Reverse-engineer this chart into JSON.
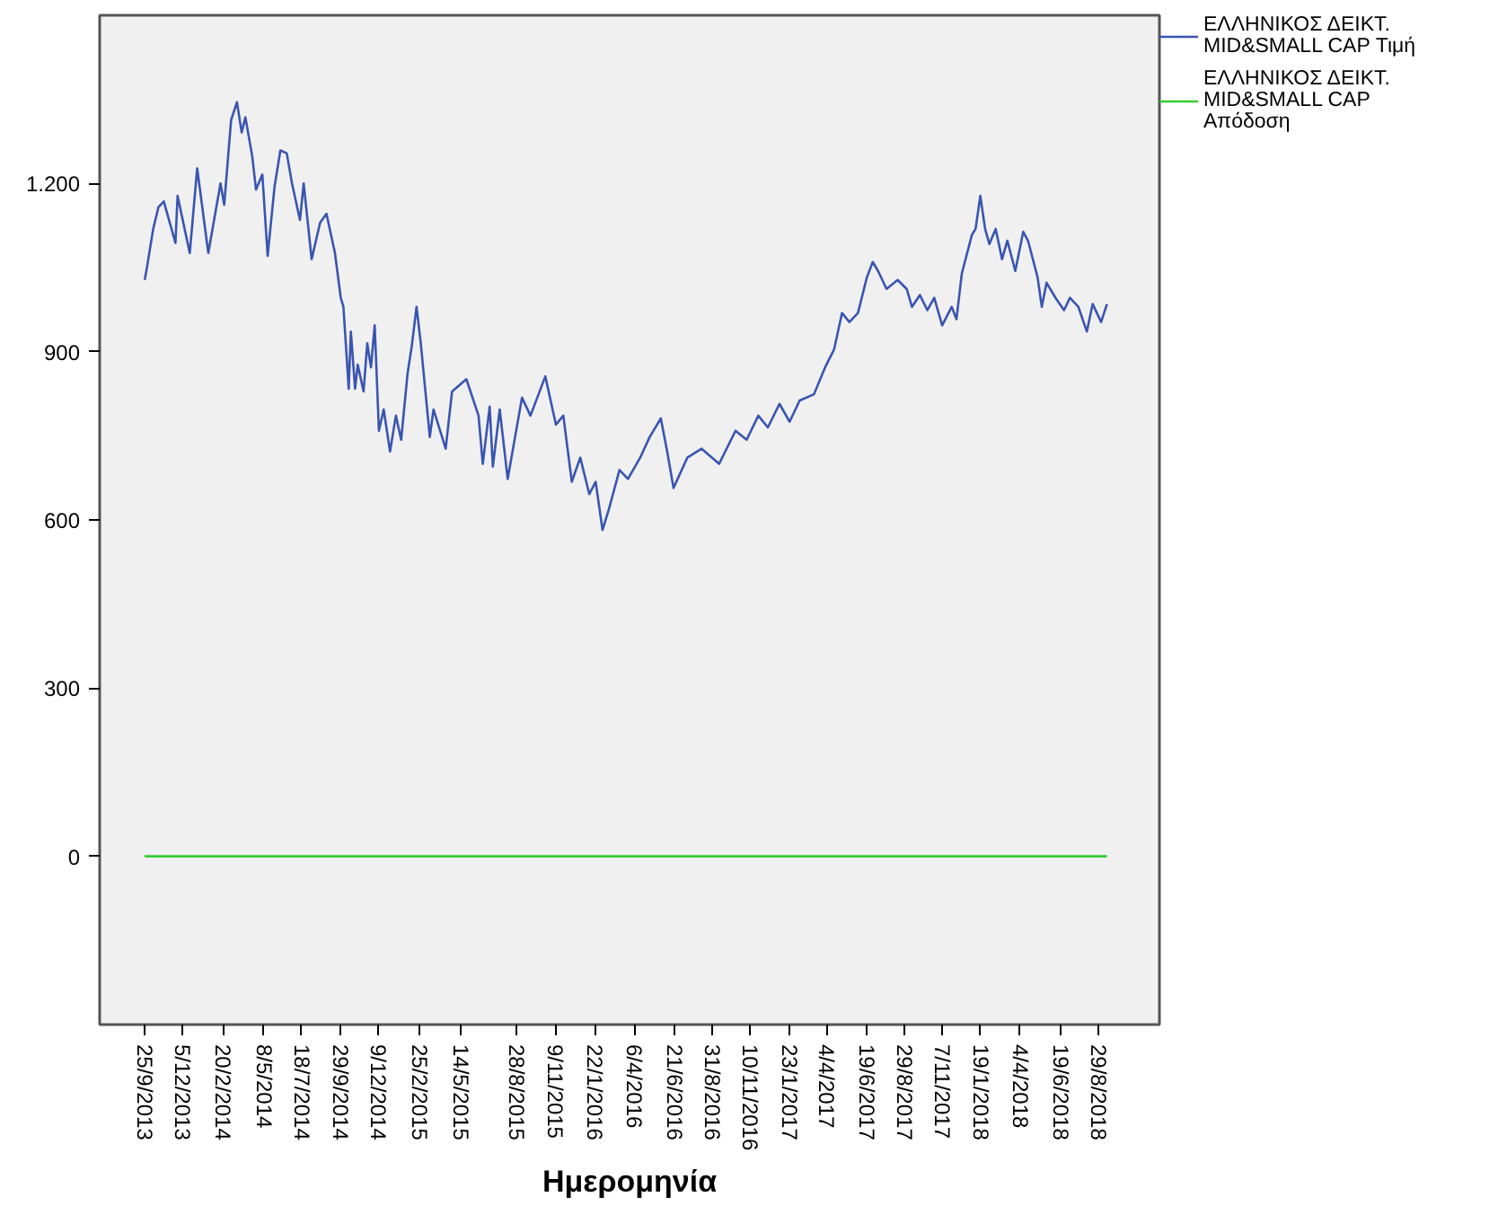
{
  "chart_data": {
    "type": "line",
    "xlabel": "Ημερομηνία",
    "xlim": [
      "2013-07-02",
      "2018-12-23"
    ],
    "ylim": [
      -300,
      1500
    ],
    "xticks": [
      {
        "value": "2013-09-25",
        "label": "25/9/2013"
      },
      {
        "value": "2013-12-05",
        "label": "5/12/2013"
      },
      {
        "value": "2014-02-20",
        "label": "20/2/2014"
      },
      {
        "value": "2014-05-08",
        "label": "8/5/2014"
      },
      {
        "value": "2014-07-18",
        "label": "18/7/2014"
      },
      {
        "value": "2014-09-29",
        "label": "29/9/2014"
      },
      {
        "value": "2014-12-09",
        "label": "9/12/2014"
      },
      {
        "value": "2015-02-25",
        "label": "25/2/2015"
      },
      {
        "value": "2015-05-14",
        "label": "14/5/2015"
      },
      {
        "value": "2015-08-28",
        "label": "28/8/2015"
      },
      {
        "value": "2015-11-09",
        "label": "9/11/2015"
      },
      {
        "value": "2016-01-22",
        "label": "22/1/2016"
      },
      {
        "value": "2016-04-06",
        "label": "6/4/2016"
      },
      {
        "value": "2016-06-21",
        "label": "21/6/2016"
      },
      {
        "value": "2016-08-31",
        "label": "31/8/2016"
      },
      {
        "value": "2016-11-10",
        "label": "10/11/2016"
      },
      {
        "value": "2017-01-23",
        "label": "23/1/2017"
      },
      {
        "value": "2017-04-04",
        "label": "4/4/2017"
      },
      {
        "value": "2017-06-19",
        "label": "19/6/2017"
      },
      {
        "value": "2017-08-29",
        "label": "29/8/2017"
      },
      {
        "value": "2017-11-07",
        "label": "7/11/2017"
      },
      {
        "value": "2018-01-19",
        "label": "19/1/2018"
      },
      {
        "value": "2018-04-04",
        "label": "4/4/2018"
      },
      {
        "value": "2018-06-19",
        "label": "19/6/2018"
      },
      {
        "value": "2018-08-29",
        "label": "29/8/2018"
      }
    ],
    "yticks": [
      0,
      300,
      600,
      900,
      {
        "value": 1200,
        "label": "1.200"
      }
    ],
    "grid": false,
    "legend": "top right",
    "marker": "none",
    "line_style": "solid",
    "series": [
      {
        "name": "ΕΛΛΗΝΙΚΟΣ ΔΕΙΚΤ. MID&SMALL CAP Τιμή",
        "color": "#3a55b0",
        "x": [
          "2013-09-25",
          "2013-09-29",
          "2013-10-11",
          "2013-10-21",
          "2013-10-31",
          "2013-11-22",
          "2013-11-26",
          "2013-12-19",
          "2014-01-02",
          "2014-01-23",
          "2014-02-15",
          "2014-02-22",
          "2014-03-07",
          "2014-03-18",
          "2014-03-27",
          "2014-04-03",
          "2014-04-16",
          "2014-04-23",
          "2014-05-05",
          "2014-05-15",
          "2014-05-28",
          "2014-06-08",
          "2014-06-20",
          "2014-06-30",
          "2014-07-15",
          "2014-07-22",
          "2014-08-06",
          "2014-08-22",
          "2014-09-03",
          "2014-09-19",
          "2014-09-30",
          "2014-10-05",
          "2014-10-15",
          "2014-10-19",
          "2014-10-27",
          "2014-11-01",
          "2014-11-12",
          "2014-11-19",
          "2014-11-26",
          "2014-12-03",
          "2014-12-11",
          "2014-12-20",
          "2015-01-01",
          "2015-01-12",
          "2015-01-22",
          "2015-02-03",
          "2015-02-11",
          "2015-02-20",
          "2015-02-28",
          "2015-03-17",
          "2015-03-24",
          "2015-04-16",
          "2015-04-28",
          "2015-05-25",
          "2015-06-17",
          "2015-06-25",
          "2015-07-08",
          "2015-07-14",
          "2015-07-27",
          "2015-08-11",
          "2015-09-07",
          "2015-09-23",
          "2015-10-21",
          "2015-11-10",
          "2015-11-24",
          "2015-12-10",
          "2015-12-26",
          "2016-01-12",
          "2016-01-24",
          "2016-02-06",
          "2016-02-18",
          "2016-03-09",
          "2016-03-25",
          "2016-04-17",
          "2016-05-05",
          "2016-05-26",
          "2016-06-07",
          "2016-06-19",
          "2016-07-15",
          "2016-08-11",
          "2016-09-13",
          "2016-10-14",
          "2016-11-04",
          "2016-11-26",
          "2016-12-14",
          "2017-01-05",
          "2017-01-24",
          "2017-02-12",
          "2017-03-11",
          "2017-04-01",
          "2017-04-18",
          "2017-05-03",
          "2017-05-17",
          "2017-06-02",
          "2017-06-19",
          "2017-06-30",
          "2017-07-10",
          "2017-07-26",
          "2017-08-16",
          "2017-09-02",
          "2017-09-12",
          "2017-09-27",
          "2017-10-11",
          "2017-10-24",
          "2017-11-08",
          "2017-11-26",
          "2017-12-05",
          "2017-12-15",
          "2018-01-03",
          "2018-01-10",
          "2018-01-19",
          "2018-01-28",
          "2018-02-05",
          "2018-02-17",
          "2018-03-01",
          "2018-03-11",
          "2018-03-26",
          "2018-04-10",
          "2018-04-19",
          "2018-05-07",
          "2018-05-15",
          "2018-05-24",
          "2018-06-10",
          "2018-06-26",
          "2018-07-07",
          "2018-07-23",
          "2018-08-08",
          "2018-08-19",
          "2018-09-04",
          "2018-09-15"
        ],
        "values": [
          1028,
          1049,
          1119,
          1158,
          1168,
          1094,
          1178,
          1076,
          1227,
          1076,
          1200,
          1162,
          1313,
          1345,
          1291,
          1318,
          1248,
          1189,
          1216,
          1071,
          1194,
          1259,
          1254,
          1200,
          1135,
          1200,
          1065,
          1130,
          1146,
          1076,
          996,
          980,
          834,
          936,
          834,
          877,
          829,
          915,
          872,
          947,
          759,
          797,
          722,
          786,
          743,
          861,
          910,
          980,
          915,
          748,
          797,
          727,
          829,
          851,
          786,
          700,
          802,
          695,
          797,
          673,
          818,
          786,
          856,
          770,
          786,
          668,
          711,
          646,
          668,
          582,
          619,
          689,
          673,
          711,
          748,
          781,
          722,
          657,
          711,
          727,
          700,
          759,
          743,
          786,
          765,
          807,
          775,
          813,
          824,
          872,
          904,
          969,
          953,
          969,
          1033,
          1060,
          1044,
          1012,
          1028,
          1012,
          980,
          1001,
          974,
          996,
          947,
          980,
          958,
          1039,
          1108,
          1119,
          1178,
          1119,
          1092,
          1119,
          1065,
          1098,
          1044,
          1114,
          1098,
          1033,
          980,
          1023,
          996,
          974,
          996,
          980,
          936,
          985,
          953,
          985
        ]
      },
      {
        "name": "ΕΛΛΗΝΙΚΟΣ ΔΕΙΚΤ. MID&SMALL CAP Απόδοση",
        "color": "#33cc33",
        "x": [
          "2013-09-25",
          "2018-09-15"
        ],
        "values": [
          0,
          0
        ]
      }
    ]
  }
}
